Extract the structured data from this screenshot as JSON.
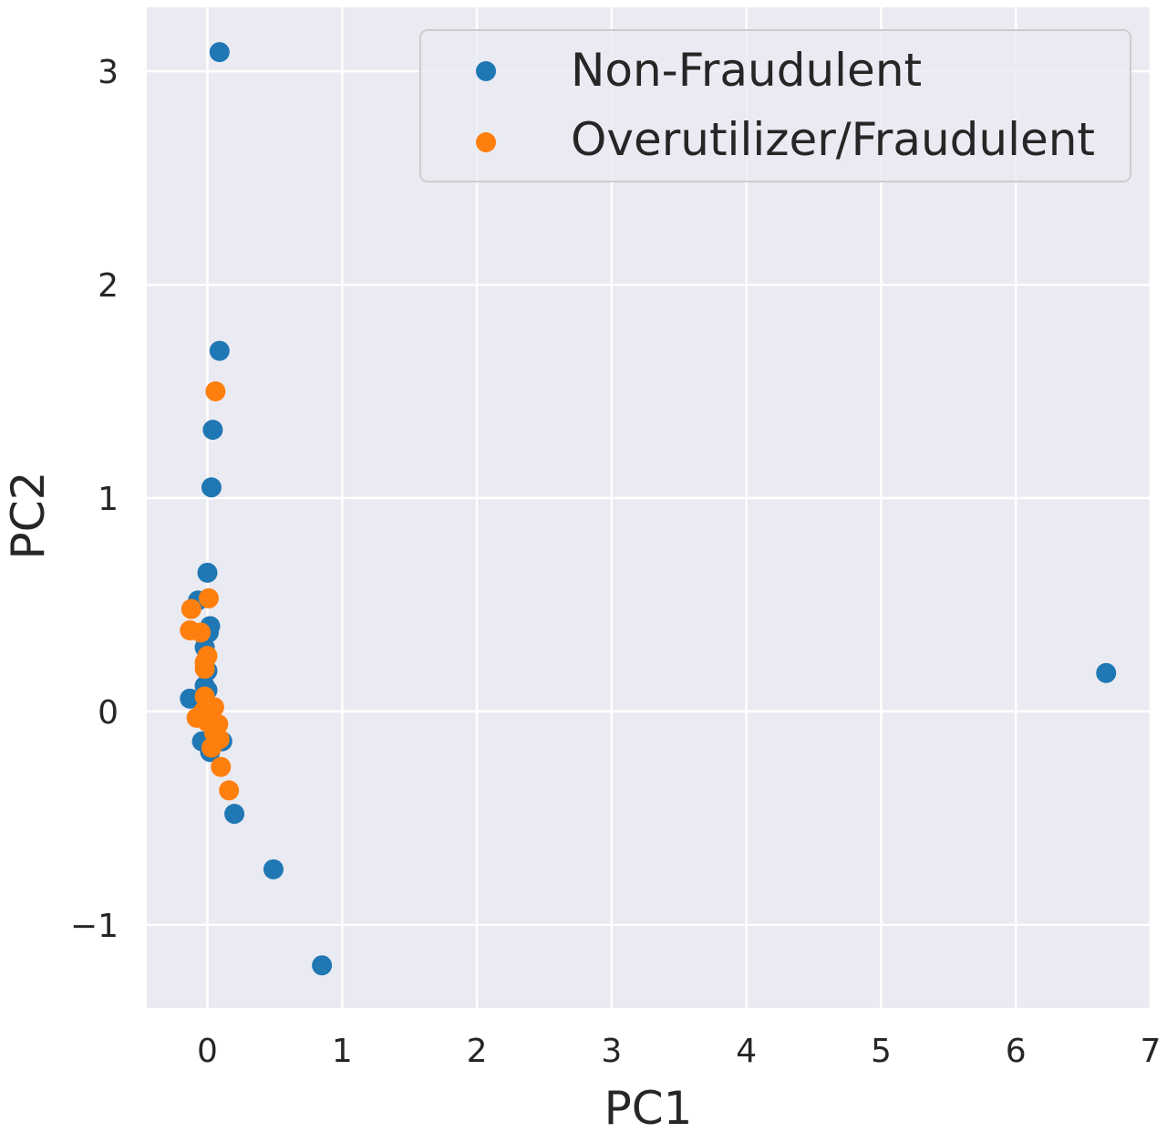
{
  "chart_data": {
    "type": "scatter",
    "title": "",
    "xlabel": "PC1",
    "ylabel": "PC2",
    "xlim": [
      -0.45,
      7.0
    ],
    "ylim": [
      -1.39,
      3.3
    ],
    "xticks": [
      0,
      1,
      2,
      3,
      4,
      5,
      6,
      7
    ],
    "yticks": [
      -1,
      0,
      1,
      2,
      3
    ],
    "xtick_labels": [
      "0",
      "1",
      "2",
      "3",
      "4",
      "5",
      "6",
      "7"
    ],
    "ytick_labels": [
      "−1",
      "0",
      "1",
      "2",
      "3"
    ],
    "grid": true,
    "legend_position": "top-right",
    "series": [
      {
        "name": "Non-Fraudulent",
        "color": "#1f77b4",
        "points": [
          [
            0.09,
            3.09
          ],
          [
            0.09,
            1.69
          ],
          [
            0.04,
            1.32
          ],
          [
            0.03,
            1.05
          ],
          [
            0.0,
            0.65
          ],
          [
            -0.07,
            0.52
          ],
          [
            0.02,
            0.4
          ],
          [
            0.01,
            0.37
          ],
          [
            -0.02,
            0.3
          ],
          [
            0.0,
            0.19
          ],
          [
            -0.02,
            0.12
          ],
          [
            0.0,
            0.1
          ],
          [
            -0.13,
            0.06
          ],
          [
            -0.02,
            0.02
          ],
          [
            0.05,
            -0.05
          ],
          [
            0.11,
            -0.14
          ],
          [
            -0.04,
            -0.14
          ],
          [
            0.02,
            -0.19
          ],
          [
            0.2,
            -0.48
          ],
          [
            0.49,
            -0.74
          ],
          [
            0.85,
            -1.19
          ],
          [
            6.67,
            0.18
          ]
        ]
      },
      {
        "name": "Overutilizer/Fraudulent",
        "color": "#ff7f0e",
        "points": [
          [
            0.06,
            1.5
          ],
          [
            0.01,
            0.53
          ],
          [
            -0.12,
            0.48
          ],
          [
            -0.13,
            0.38
          ],
          [
            -0.05,
            0.37
          ],
          [
            0.0,
            0.26
          ],
          [
            -0.02,
            0.23
          ],
          [
            -0.02,
            0.2
          ],
          [
            -0.02,
            0.07
          ],
          [
            0.05,
            0.02
          ],
          [
            -0.03,
            0.0
          ],
          [
            0.03,
            0.01
          ],
          [
            -0.08,
            -0.03
          ],
          [
            0.0,
            -0.05
          ],
          [
            0.08,
            -0.06
          ],
          [
            0.05,
            -0.1
          ],
          [
            0.09,
            -0.13
          ],
          [
            0.03,
            -0.17
          ],
          [
            0.1,
            -0.26
          ],
          [
            0.16,
            -0.37
          ]
        ]
      }
    ]
  }
}
